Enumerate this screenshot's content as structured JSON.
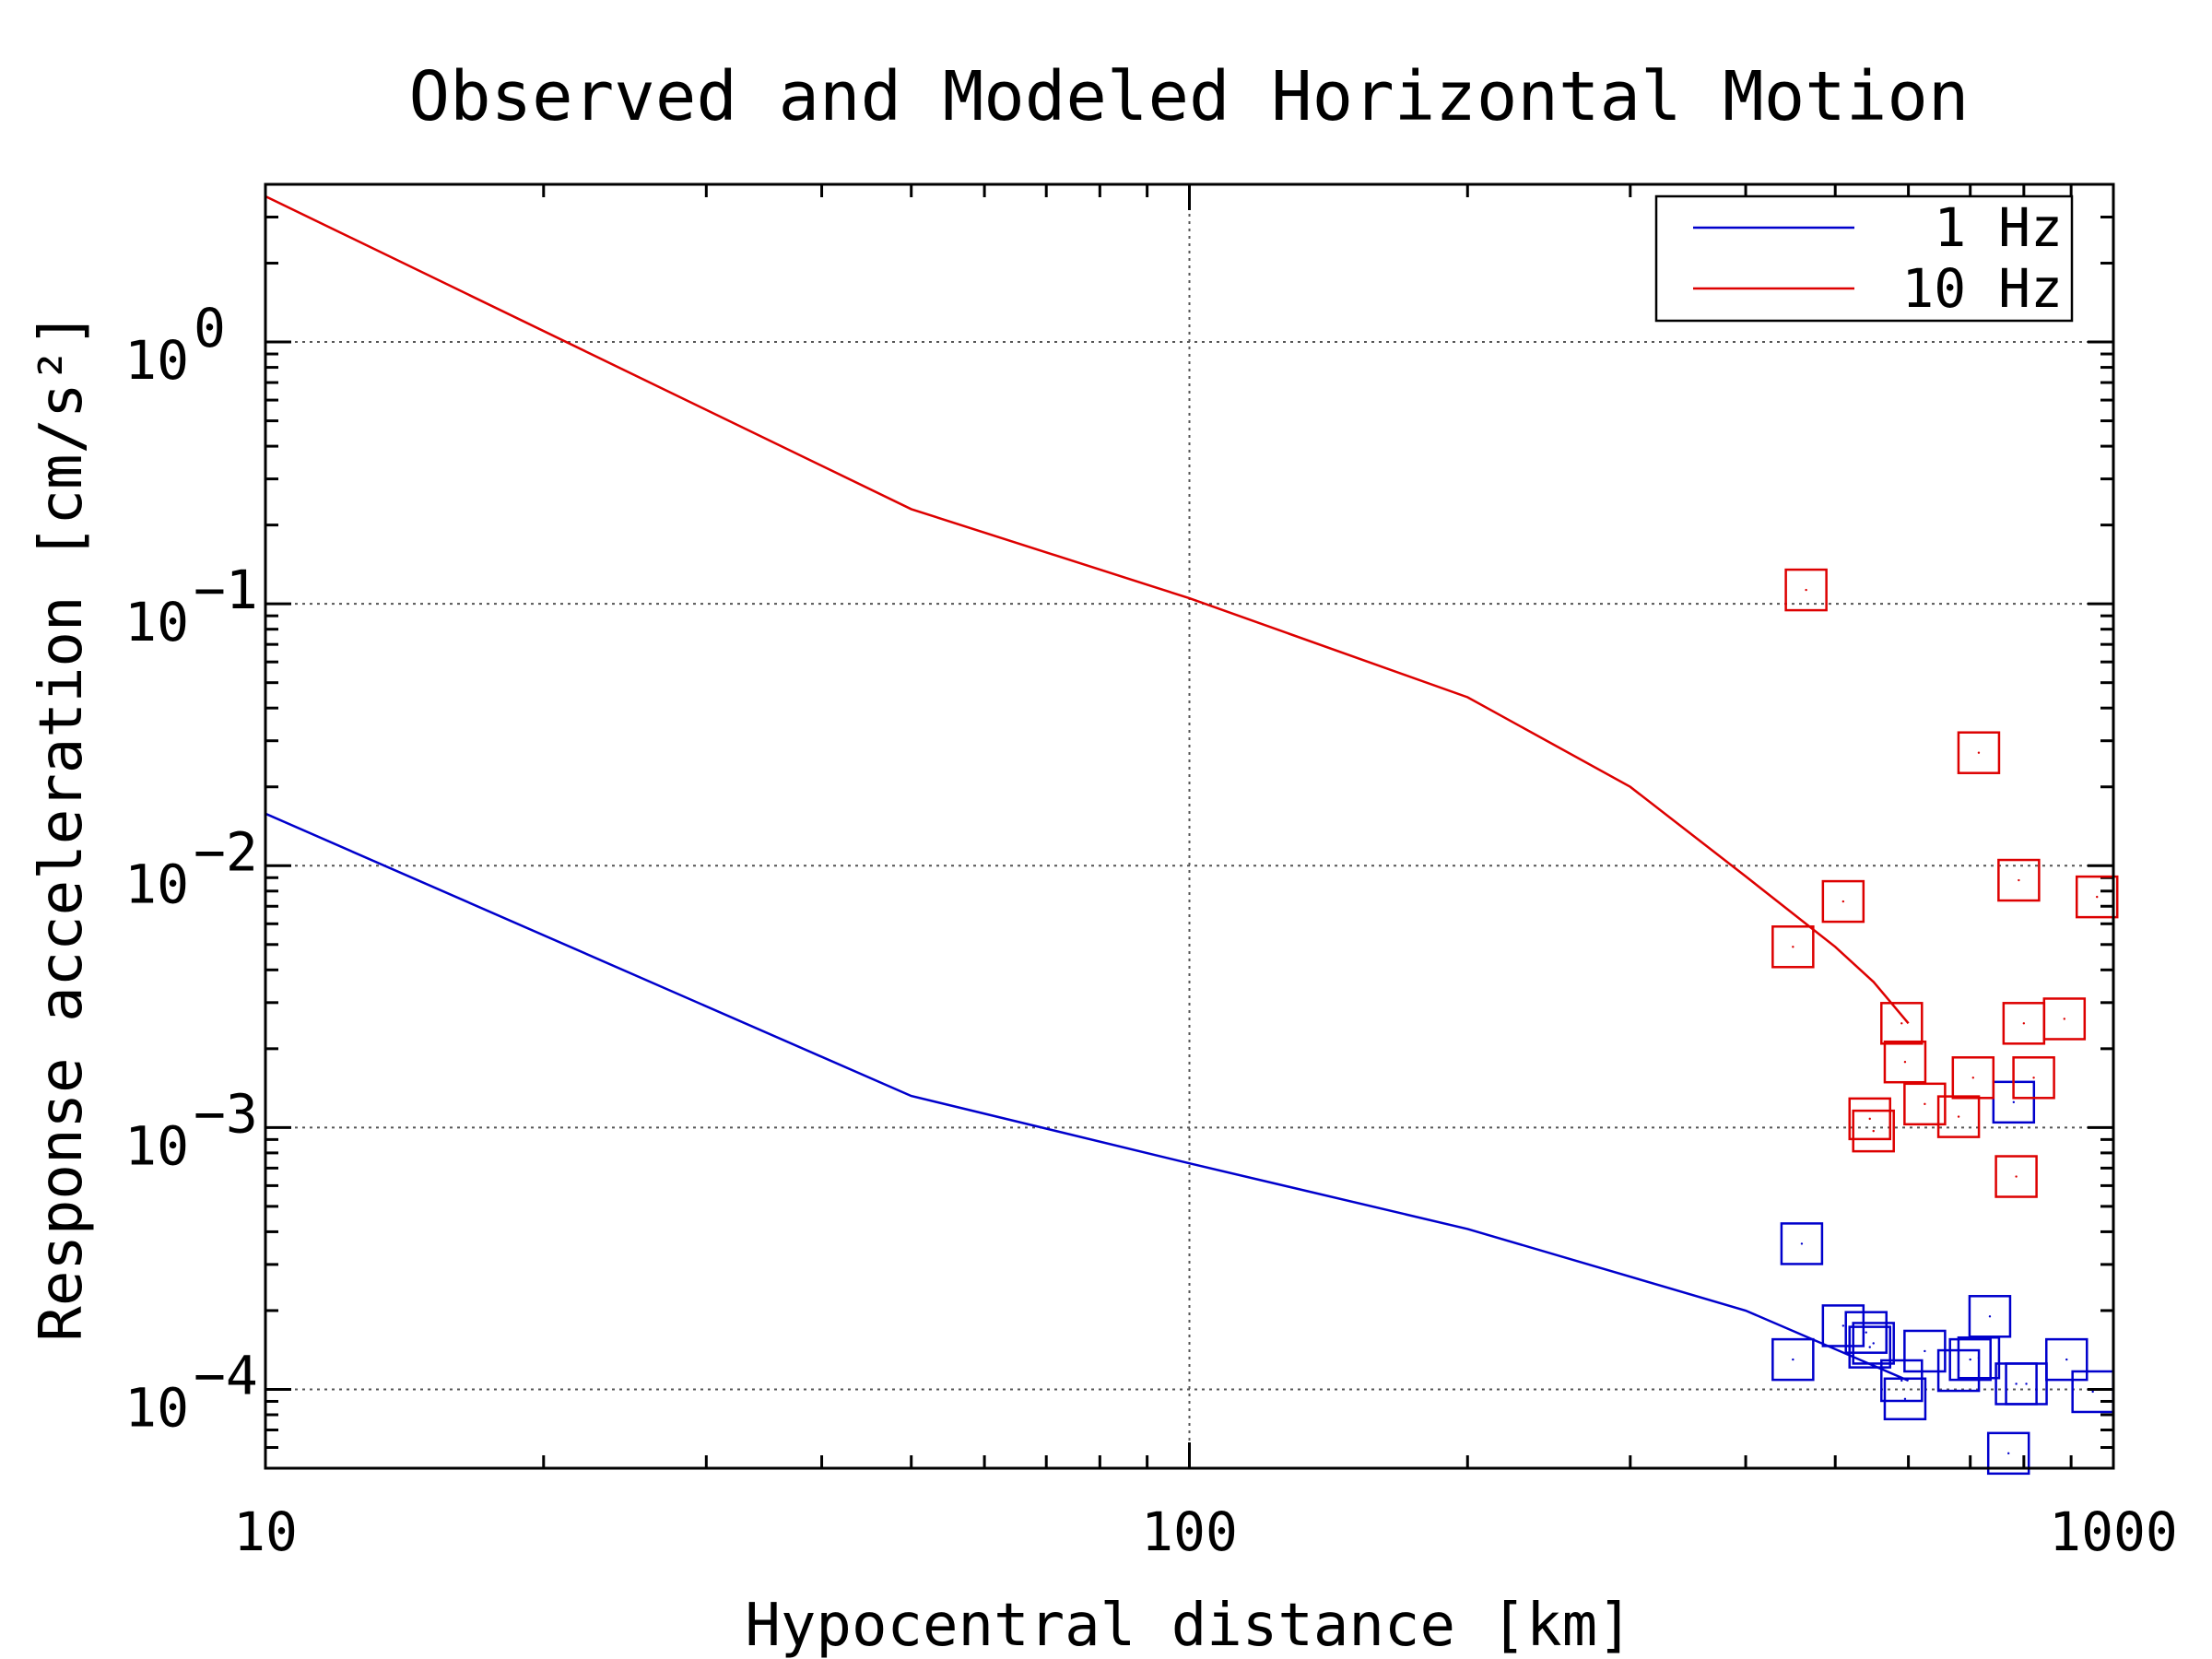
{
  "chart_data": {
    "type": "scatter",
    "title": "Observed and Modeled Horizontal Motion",
    "xlabel": "Hypocentral distance [km]",
    "ylabel": "Response acceleration [cm/s²]",
    "x_scale": "log",
    "y_scale": "log",
    "xlim": [
      10,
      1000
    ],
    "ylim": [
      5e-05,
      4
    ],
    "x_ticks": [
      {
        "value": 10,
        "label": "10"
      },
      {
        "value": 100,
        "label": "100"
      },
      {
        "value": 1000,
        "label": "1000"
      }
    ],
    "y_ticks": [
      {
        "value": 1,
        "base": "10",
        "exp": "0"
      },
      {
        "value": 0.1,
        "base": "10",
        "exp": "−1"
      },
      {
        "value": 0.01,
        "base": "10",
        "exp": "−2"
      },
      {
        "value": 0.001,
        "base": "10",
        "exp": "−3"
      },
      {
        "value": 0.0001,
        "base": "10",
        "exp": "−4"
      }
    ],
    "grid": true,
    "legend_position": "top-right",
    "series": [
      {
        "name": "1 Hz",
        "color": "#0000cc",
        "model": {
          "x": [
            10,
            50,
            100,
            200,
            400,
            600
          ],
          "y": [
            0.0158,
            0.00132,
            0.00073,
            0.00041,
            0.0002,
            0.000108
          ]
        },
        "observed": {
          "x": [
            450,
            460,
            510,
            540,
            545,
            550,
            590,
            595,
            625,
            680,
            700,
            715,
            735,
            770,
            780,
            785,
            805,
            890,
            950
          ],
          "y": [
            0.00013,
            0.00036,
            0.000175,
            0.000165,
            0.000145,
            0.00015,
            0.000108,
            9.2e-05,
            0.00014,
            0.000118,
            0.00013,
            0.000132,
            0.00019,
            5.7e-05,
            0.00125,
            0.000105,
            0.000105,
            0.00013,
            9.8e-05
          ]
        }
      },
      {
        "name": "10 Hz",
        "color": "#dd0000",
        "model": {
          "x": [
            10,
            50,
            100,
            200,
            300,
            400,
            500,
            550,
            600
          ],
          "y": [
            3.6,
            0.23,
            0.105,
            0.044,
            0.02,
            0.0091,
            0.0049,
            0.0036,
            0.0025
          ]
        },
        "observed": {
          "x": [
            450,
            465,
            510,
            545,
            550,
            590,
            595,
            625,
            680,
            705,
            715,
            785,
            790,
            800,
            820,
            885,
            960
          ],
          "y": [
            0.0049,
            0.113,
            0.0073,
            0.00108,
            0.00097,
            0.0025,
            0.00178,
            0.00123,
            0.0011,
            0.00155,
            0.027,
            0.00065,
            0.0088,
            0.0025,
            0.00155,
            0.0026,
            0.0076
          ]
        }
      }
    ]
  }
}
